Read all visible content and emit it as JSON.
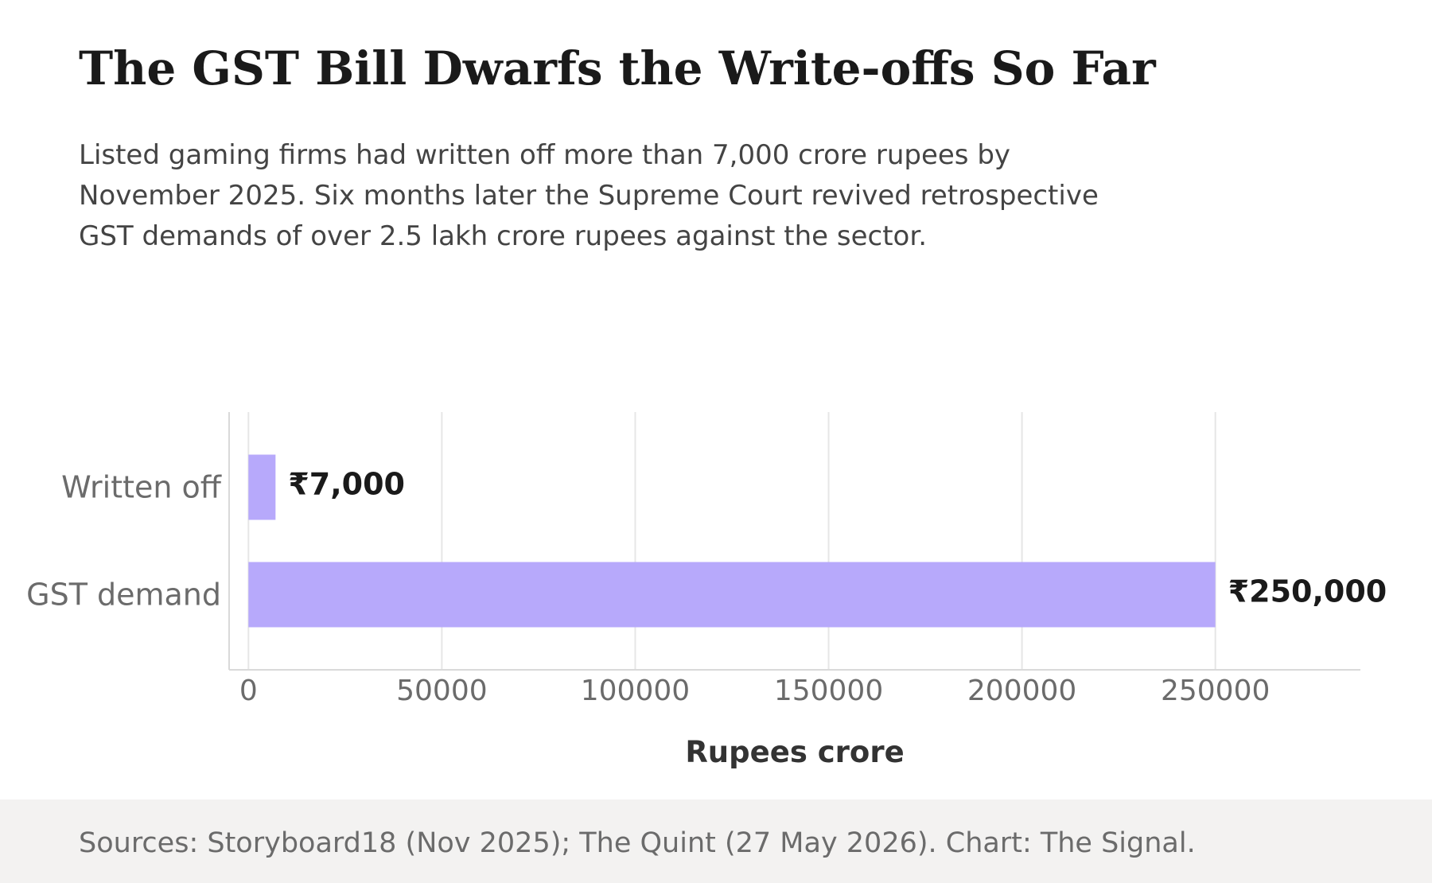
{
  "title": "The GST Bill Dwarfs the Write-offs So Far",
  "subtitle": "Listed gaming firms had written off more than 7,000 crore rupees by November 2025. Six months later the Supreme Court revived retrospective GST demands of over 2.5 lakh crore rupees against the sector.",
  "footer": {
    "source": "Sources: Storyboard18 (Nov 2025); The Quint (27 May 2026). Chart: The Signal."
  },
  "chart_data": {
    "type": "bar",
    "orientation": "horizontal",
    "categories": [
      "Written off",
      "GST demand"
    ],
    "values": [
      7000,
      250000
    ],
    "data_labels": [
      "₹7,000",
      "₹250,000"
    ],
    "xlabel": "Rupees crore",
    "ylabel": "",
    "xlim": [
      -5000,
      287500
    ],
    "xticks": [
      0,
      50000,
      100000,
      150000,
      200000,
      250000
    ],
    "xtick_labels": [
      "0",
      "50000",
      "100000",
      "150000",
      "200000",
      "250000"
    ],
    "grid": "vertical",
    "bar_color": "#b7a9fb",
    "grid_color": "#e6e6e6",
    "axis_color": "#d9d9d9"
  }
}
